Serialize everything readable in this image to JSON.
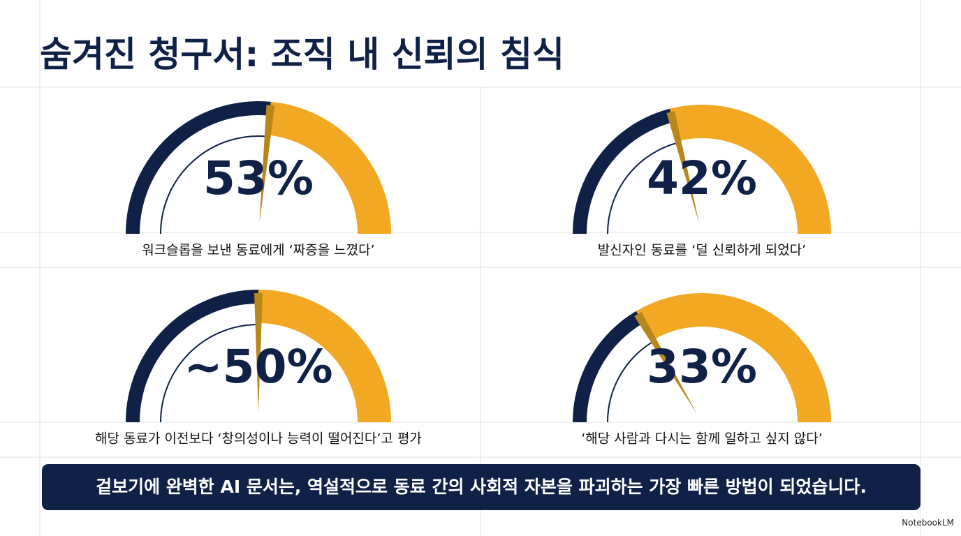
{
  "title": "숨겨진 청구서: 조직 내 신뢰의 침식",
  "chart_data": [
    {
      "type": "gauge",
      "values": [
        53
      ],
      "value_labels": [
        "53%"
      ],
      "ylim": [
        0,
        100
      ],
      "caption": "워크슬롭을 보낸 동료에게 ‘짜증을 느꼈다’",
      "colors": [
        "#0f2147",
        "#f3a823"
      ]
    },
    {
      "type": "gauge",
      "values": [
        42
      ],
      "value_labels": [
        "42%"
      ],
      "ylim": [
        0,
        100
      ],
      "caption": "발신자인 동료를 ‘덜 신뢰하게 되었다’",
      "colors": [
        "#0f2147",
        "#f3a823"
      ]
    },
    {
      "type": "gauge",
      "values": [
        50
      ],
      "value_labels": [
        "~50%"
      ],
      "ylim": [
        0,
        100
      ],
      "caption": "해당 동료가 이전보다 ‘창의성이나 능력이 떨어진다’고 평가",
      "colors": [
        "#0f2147",
        "#f3a823"
      ]
    },
    {
      "type": "gauge",
      "values": [
        33
      ],
      "value_labels": [
        "33%"
      ],
      "ylim": [
        0,
        100
      ],
      "caption": "‘해당 사람과 다시는 함께 일하고 싶지 않다’",
      "colors": [
        "#0f2147",
        "#f3a823"
      ]
    }
  ],
  "banner": "겉보기에 완벽한 AI 문서는, 역설적으로 동료 간의 사회적 자본을 파괴하는 가장 빠른 방법이 되었습니다.",
  "brand": "NotebookLM"
}
